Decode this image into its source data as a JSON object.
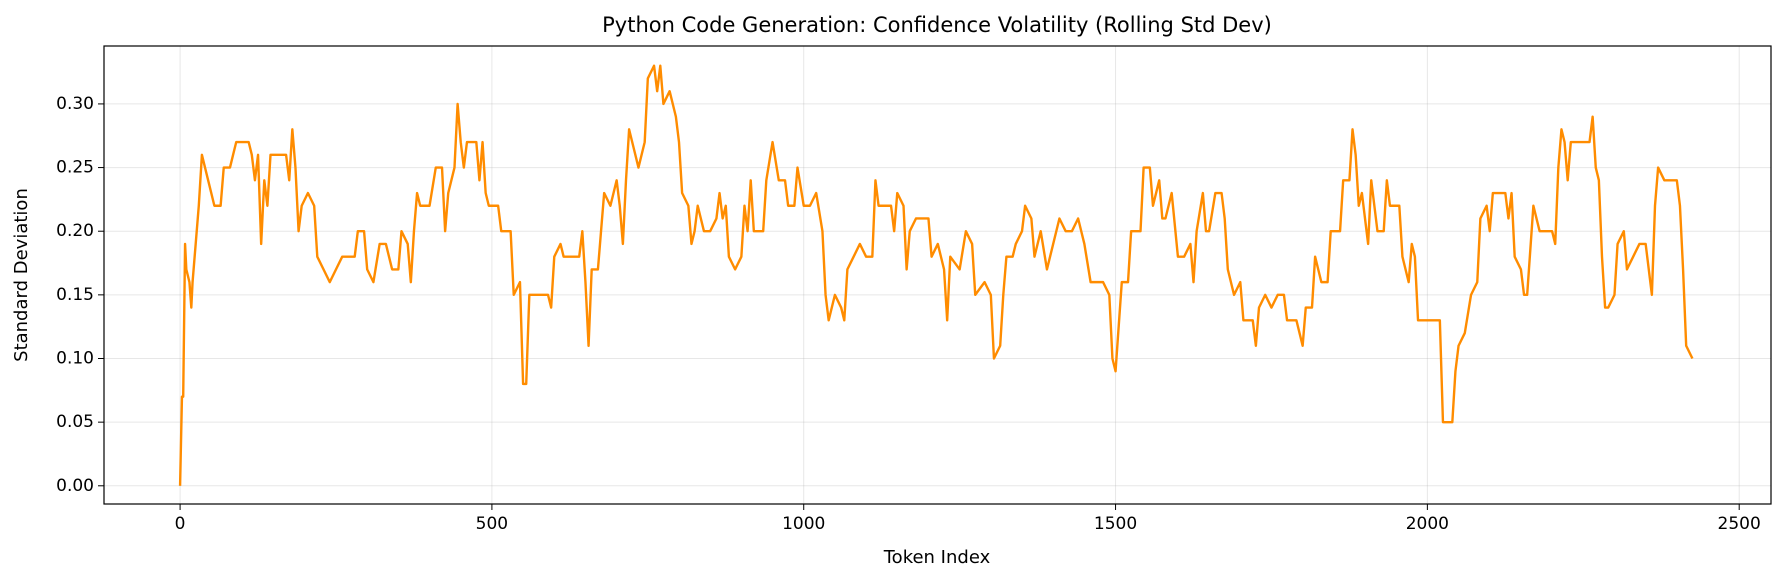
{
  "chart_data": {
    "type": "line",
    "title": "Python Code Generation: Confidence Volatility (Rolling Std Dev)",
    "x_label": "Token Index",
    "y_label": "Standard Deviation",
    "color": "#ff8c00",
    "grid": true,
    "xlim": [
      -122,
      2551
    ],
    "ylim": [
      -0.0143,
      0.3455
    ],
    "xticks": [
      0,
      500,
      1000,
      1500,
      2000,
      2500
    ],
    "yticks": [
      {
        "value": 0,
        "label": "0.00"
      },
      {
        "value": 0.05,
        "label": "0.05"
      },
      {
        "value": 0.1,
        "label": "0.10"
      },
      {
        "value": 0.15,
        "label": "0.15"
      },
      {
        "value": 0.2,
        "label": "0.20"
      },
      {
        "value": 0.25,
        "label": "0.25"
      },
      {
        "value": 0.3,
        "label": "0.30"
      }
    ],
    "x": [
      0,
      3,
      5,
      8,
      10,
      15,
      18,
      20,
      25,
      30,
      35,
      45,
      55,
      65,
      70,
      80,
      85,
      90,
      110,
      115,
      120,
      125,
      130,
      135,
      140,
      145,
      170,
      175,
      180,
      185,
      190,
      195,
      205,
      215,
      220,
      230,
      240,
      250,
      260,
      280,
      285,
      295,
      300,
      310,
      320,
      330,
      340,
      350,
      355,
      365,
      370,
      375,
      380,
      385,
      400,
      410,
      420,
      425,
      430,
      440,
      445,
      450,
      455,
      460,
      475,
      480,
      485,
      490,
      495,
      510,
      515,
      530,
      535,
      545,
      550,
      555,
      560,
      590,
      595,
      600,
      610,
      615,
      640,
      645,
      650,
      655,
      660,
      670,
      675,
      680,
      690,
      700,
      705,
      710,
      715,
      720,
      725,
      735,
      745,
      750,
      760,
      765,
      770,
      775,
      785,
      795,
      800,
      805,
      815,
      820,
      825,
      830,
      840,
      850,
      860,
      865,
      870,
      875,
      880,
      890,
      900,
      905,
      910,
      915,
      920,
      935,
      940,
      950,
      960,
      970,
      975,
      985,
      990,
      1000,
      1010,
      1020,
      1030,
      1035,
      1040,
      1050,
      1060,
      1065,
      1070,
      1080,
      1090,
      1100,
      1110,
      1115,
      1120,
      1130,
      1140,
      1145,
      1150,
      1160,
      1165,
      1170,
      1180,
      1200,
      1205,
      1215,
      1225,
      1230,
      1235,
      1250,
      1260,
      1270,
      1275,
      1290,
      1300,
      1305,
      1315,
      1320,
      1325,
      1335,
      1340,
      1350,
      1355,
      1365,
      1370,
      1380,
      1390,
      1400,
      1410,
      1420,
      1430,
      1440,
      1450,
      1460,
      1480,
      1490,
      1495,
      1500,
      1510,
      1520,
      1525,
      1540,
      1545,
      1555,
      1560,
      1570,
      1575,
      1580,
      1590,
      1600,
      1610,
      1620,
      1625,
      1630,
      1640,
      1645,
      1650,
      1660,
      1670,
      1675,
      1680,
      1690,
      1700,
      1705,
      1720,
      1725,
      1730,
      1740,
      1750,
      1760,
      1770,
      1775,
      1790,
      1800,
      1805,
      1815,
      1820,
      1830,
      1840,
      1845,
      1860,
      1865,
      1875,
      1880,
      1885,
      1890,
      1895,
      1905,
      1910,
      1920,
      1930,
      1935,
      1940,
      1955,
      1960,
      1970,
      1975,
      1980,
      1985,
      1990,
      2000,
      2010,
      2020,
      2025,
      2040,
      2045,
      2050,
      2060,
      2070,
      2080,
      2085,
      2095,
      2100,
      2105,
      2125,
      2130,
      2135,
      2140,
      2150,
      2155,
      2160,
      2170,
      2180,
      2200,
      2205,
      2210,
      2215,
      2220,
      2225,
      2230,
      2260,
      2265,
      2270,
      2275,
      2280,
      2285,
      2290,
      2300,
      2305,
      2315,
      2320,
      2330,
      2340,
      2350,
      2360,
      2365,
      2370,
      2380,
      2390,
      2400,
      2405,
      2410,
      2415,
      2425
    ],
    "values": [
      0.0,
      0.07,
      0.07,
      0.19,
      0.17,
      0.16,
      0.14,
      0.16,
      0.19,
      0.22,
      0.26,
      0.24,
      0.22,
      0.22,
      0.25,
      0.25,
      0.26,
      0.27,
      0.27,
      0.26,
      0.24,
      0.26,
      0.19,
      0.24,
      0.22,
      0.26,
      0.26,
      0.24,
      0.28,
      0.25,
      0.2,
      0.22,
      0.23,
      0.22,
      0.18,
      0.17,
      0.16,
      0.17,
      0.18,
      0.18,
      0.2,
      0.2,
      0.17,
      0.16,
      0.19,
      0.19,
      0.17,
      0.17,
      0.2,
      0.19,
      0.16,
      0.2,
      0.23,
      0.22,
      0.22,
      0.25,
      0.25,
      0.2,
      0.23,
      0.25,
      0.3,
      0.27,
      0.25,
      0.27,
      0.27,
      0.24,
      0.27,
      0.23,
      0.22,
      0.22,
      0.2,
      0.2,
      0.15,
      0.16,
      0.08,
      0.08,
      0.15,
      0.15,
      0.14,
      0.18,
      0.19,
      0.18,
      0.18,
      0.2,
      0.16,
      0.11,
      0.17,
      0.17,
      0.2,
      0.23,
      0.22,
      0.24,
      0.22,
      0.19,
      0.24,
      0.28,
      0.27,
      0.25,
      0.27,
      0.32,
      0.33,
      0.31,
      0.33,
      0.3,
      0.31,
      0.29,
      0.27,
      0.23,
      0.22,
      0.19,
      0.2,
      0.22,
      0.2,
      0.2,
      0.21,
      0.23,
      0.21,
      0.22,
      0.18,
      0.17,
      0.18,
      0.22,
      0.2,
      0.24,
      0.2,
      0.2,
      0.24,
      0.27,
      0.24,
      0.24,
      0.22,
      0.22,
      0.25,
      0.22,
      0.22,
      0.23,
      0.2,
      0.15,
      0.13,
      0.15,
      0.14,
      0.13,
      0.17,
      0.18,
      0.19,
      0.18,
      0.18,
      0.24,
      0.22,
      0.22,
      0.22,
      0.2,
      0.23,
      0.22,
      0.17,
      0.2,
      0.21,
      0.21,
      0.18,
      0.19,
      0.17,
      0.13,
      0.18,
      0.17,
      0.2,
      0.19,
      0.15,
      0.16,
      0.15,
      0.1,
      0.11,
      0.15,
      0.18,
      0.18,
      0.19,
      0.2,
      0.22,
      0.21,
      0.18,
      0.2,
      0.17,
      0.19,
      0.21,
      0.2,
      0.2,
      0.21,
      0.19,
      0.16,
      0.16,
      0.15,
      0.1,
      0.09,
      0.16,
      0.16,
      0.2,
      0.2,
      0.25,
      0.25,
      0.22,
      0.24,
      0.21,
      0.21,
      0.23,
      0.18,
      0.18,
      0.19,
      0.16,
      0.2,
      0.23,
      0.2,
      0.2,
      0.23,
      0.23,
      0.21,
      0.17,
      0.15,
      0.16,
      0.13,
      0.13,
      0.11,
      0.14,
      0.15,
      0.14,
      0.15,
      0.15,
      0.13,
      0.13,
      0.11,
      0.14,
      0.14,
      0.18,
      0.16,
      0.16,
      0.2,
      0.2,
      0.24,
      0.24,
      0.28,
      0.26,
      0.22,
      0.23,
      0.19,
      0.24,
      0.2,
      0.2,
      0.24,
      0.22,
      0.22,
      0.18,
      0.16,
      0.19,
      0.18,
      0.13,
      0.13,
      0.13,
      0.13,
      0.13,
      0.05,
      0.05,
      0.09,
      0.11,
      0.12,
      0.15,
      0.16,
      0.21,
      0.22,
      0.2,
      0.23,
      0.23,
      0.21,
      0.23,
      0.18,
      0.17,
      0.15,
      0.15,
      0.22,
      0.2,
      0.2,
      0.19,
      0.25,
      0.28,
      0.27,
      0.24,
      0.27,
      0.27,
      0.29,
      0.25,
      0.24,
      0.18,
      0.14,
      0.14,
      0.15,
      0.19,
      0.2,
      0.17,
      0.18,
      0.19,
      0.19,
      0.15,
      0.22,
      0.25,
      0.24,
      0.24,
      0.24,
      0.22,
      0.17,
      0.11,
      0.1
    ]
  }
}
